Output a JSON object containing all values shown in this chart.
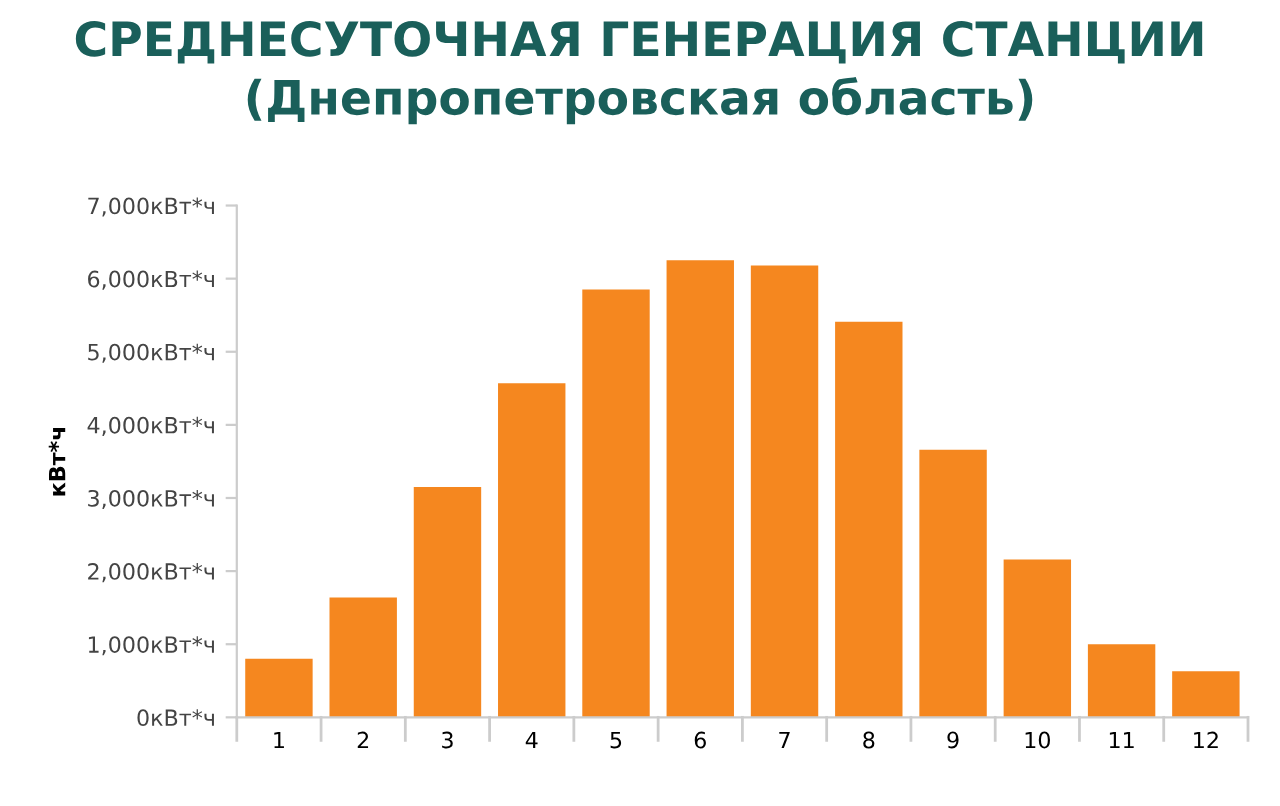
{
  "chart_data": {
    "type": "bar",
    "title": "СРЕДНЕСУТОЧНАЯ ГЕНЕРАЦИЯ СТАНЦИИ\n(Днепропетровская область)",
    "ylabel": "кВт*ч",
    "categories": [
      "1",
      "2",
      "3",
      "4",
      "5",
      "6",
      "7",
      "8",
      "9",
      "10",
      "11",
      "12"
    ],
    "values": [
      800,
      1640,
      3150,
      4570,
      5850,
      6250,
      6180,
      5410,
      3660,
      2160,
      1000,
      630
    ],
    "color": "#f5871f",
    "ylim": [
      0,
      7000
    ],
    "yticks": [
      {
        "value": 0,
        "label": "0кВт*ч"
      },
      {
        "value": 1000,
        "label": "1,000кВт*ч"
      },
      {
        "value": 2000,
        "label": "2,000кВт*ч"
      },
      {
        "value": 3000,
        "label": "3,000кВт*ч"
      },
      {
        "value": 4000,
        "label": "4,000кВт*ч"
      },
      {
        "value": 5000,
        "label": "5,000кВт*ч"
      },
      {
        "value": 6000,
        "label": "6,000кВт*ч"
      },
      {
        "value": 7000,
        "label": "7,000кВт*ч"
      }
    ],
    "grid": false
  }
}
